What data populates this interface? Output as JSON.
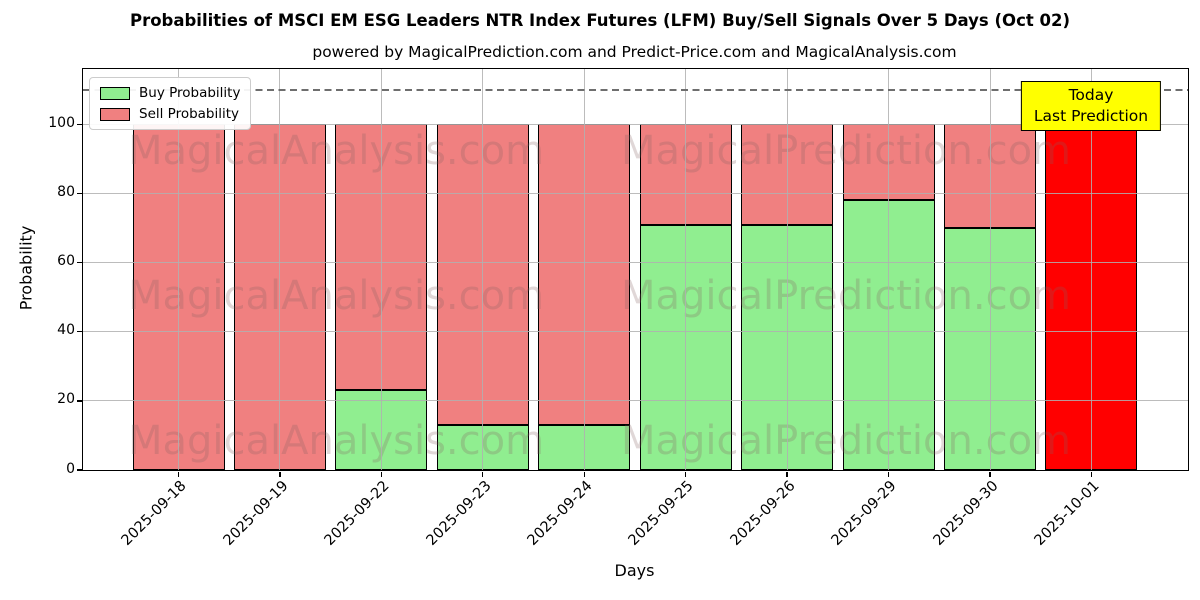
{
  "figure": {
    "title": "Probabilities of MSCI EM ESG Leaders NTR Index Futures (LFM) Buy/Sell Signals Over 5 Days (Oct 02)",
    "subtitle": "powered by MagicalPrediction.com and Predict-Price.com and MagicalAnalysis.com"
  },
  "chart_data": {
    "type": "bar",
    "stacked": true,
    "title": "Probabilities of MSCI EM ESG Leaders NTR Index Futures (LFM) Buy/Sell Signals Over 5 Days (Oct 02)",
    "xlabel": "Days",
    "ylabel": "Probability",
    "categories": [
      "2025-09-18",
      "2025-09-19",
      "2025-09-22",
      "2025-09-23",
      "2025-09-24",
      "2025-09-25",
      "2025-09-26",
      "2025-09-29",
      "2025-09-30",
      "2025-10-01"
    ],
    "series": [
      {
        "name": "Buy Probability",
        "color": "#90EE90",
        "values": [
          0,
          0,
          23,
          13,
          13,
          71,
          71,
          78,
          70,
          0
        ]
      },
      {
        "name": "Sell Probability",
        "color": "#F08080",
        "values": [
          100,
          100,
          77,
          87,
          87,
          29,
          29,
          22,
          30,
          100
        ]
      }
    ],
    "today_bar": {
      "index": 9,
      "sell_color": "#FF0000"
    },
    "ylim": [
      0,
      116
    ],
    "yticks": [
      0,
      20,
      40,
      60,
      80,
      100
    ],
    "dashed_hline": 110,
    "grid": true,
    "legend_position": "upper left",
    "bar_edge_color": "#000000"
  },
  "annotation_box": {
    "line1": "Today",
    "line2": "Last Prediction",
    "bg": "#FFFF00"
  },
  "watermarks": {
    "left": "MagicalAnalysis.com",
    "right": "MagicalPrediction.com"
  }
}
